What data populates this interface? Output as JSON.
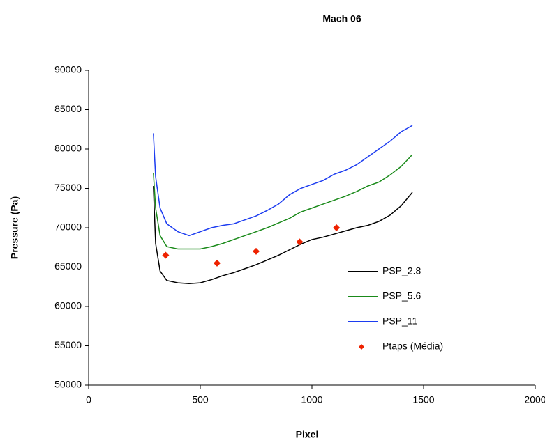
{
  "chart_data": {
    "type": "line",
    "title": "Mach 06",
    "x_label": "Pixel",
    "y_label": "Pressure (Pa)",
    "xlim": [
      0,
      2000
    ],
    "xticks": [
      0,
      500,
      1000,
      1500,
      2000
    ],
    "ylim": [
      50000,
      90000
    ],
    "yticks": [
      50000,
      55000,
      60000,
      65000,
      70000,
      75000,
      80000,
      85000,
      90000
    ],
    "grid": false,
    "legend": "right",
    "x": [
      290,
      300,
      320,
      350,
      400,
      450,
      500,
      550,
      600,
      650,
      700,
      750,
      800,
      850,
      900,
      950,
      1000,
      1050,
      1100,
      1150,
      1200,
      1250,
      1300,
      1350,
      1400,
      1450
    ],
    "series": [
      {
        "name": "PSP_2.8",
        "color": "#000000",
        "values": [
          75300,
          68000,
          64500,
          63300,
          63000,
          62900,
          63000,
          63400,
          63900,
          64300,
          64800,
          65300,
          65900,
          66500,
          67200,
          67900,
          68500,
          68800,
          69200,
          69600,
          70000,
          70300,
          70800,
          71600,
          72800,
          74500
        ]
      },
      {
        "name": "PSP_5.6",
        "color": "#1a8a1a",
        "values": [
          77000,
          72500,
          69000,
          67600,
          67300,
          67300,
          67300,
          67600,
          68000,
          68500,
          69000,
          69500,
          70000,
          70600,
          71200,
          72000,
          72500,
          73000,
          73500,
          74000,
          74600,
          75300,
          75800,
          76700,
          77800,
          79300
        ]
      },
      {
        "name": "PSP_11",
        "color": "#1c3cf0",
        "values": [
          82000,
          76500,
          72500,
          70500,
          69500,
          69000,
          69500,
          70000,
          70300,
          70500,
          71000,
          71500,
          72200,
          73000,
          74200,
          75000,
          75500,
          76000,
          76800,
          77300,
          78000,
          79000,
          80000,
          81000,
          82200,
          83000
        ]
      },
      {
        "name": "Ptaps (Média)",
        "color": "#ee2200",
        "scatter": true,
        "x": [
          345,
          575,
          750,
          945,
          1110
        ],
        "values": [
          66500,
          65500,
          67000,
          68200,
          70000
        ]
      }
    ]
  }
}
